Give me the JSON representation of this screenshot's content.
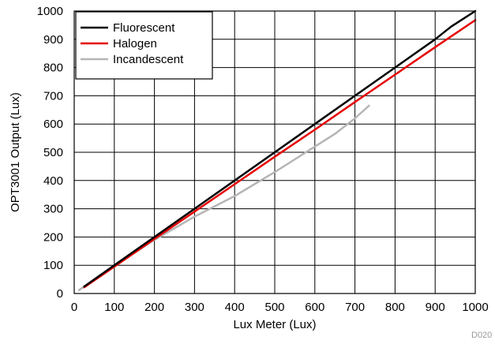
{
  "chart_data": {
    "type": "line",
    "title": "",
    "xlabel": "Lux Meter (Lux)",
    "ylabel": "OPT3001 Output (Lux)",
    "xlim": [
      0,
      1000
    ],
    "ylim": [
      0,
      1000
    ],
    "xticks": [
      0,
      100,
      200,
      300,
      400,
      500,
      600,
      700,
      800,
      900,
      1000
    ],
    "yticks": [
      0,
      100,
      200,
      300,
      400,
      500,
      600,
      700,
      800,
      900,
      1000
    ],
    "grid": true,
    "legend_position": "top-left",
    "series": [
      {
        "name": "Fluorescent",
        "color": "#000000",
        "x": [
          25,
          100,
          200,
          300,
          400,
          500,
          600,
          700,
          800,
          900,
          940,
          1000
        ],
        "y": [
          25,
          100,
          200,
          300,
          400,
          500,
          600,
          700,
          800,
          900,
          945,
          1000
        ]
      },
      {
        "name": "Halogen",
        "color": "#e60000",
        "x": [
          25,
          100,
          200,
          300,
          400,
          500,
          600,
          700,
          800,
          900,
          1000
        ],
        "y": [
          22,
          95,
          193,
          290,
          387,
          484,
          580,
          678,
          775,
          872,
          968
        ]
      },
      {
        "name": "Incandescent",
        "color": "#b5b5b5",
        "x": [
          12,
          100,
          200,
          300,
          400,
          500,
          550,
          600,
          650,
          700,
          735
        ],
        "y": [
          12,
          97,
          190,
          272,
          345,
          430,
          475,
          520,
          565,
          620,
          665
        ]
      }
    ]
  },
  "watermark": "D020"
}
